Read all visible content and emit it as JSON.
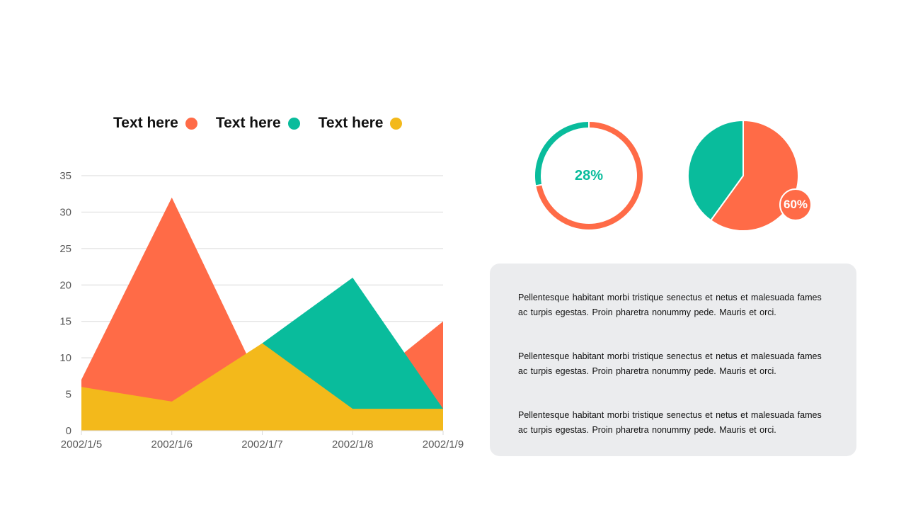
{
  "colors": {
    "orange": "#FF6B47",
    "teal": "#09BC9C",
    "yellow": "#F3B91B",
    "grid": "#D9D9D9",
    "panel": "#EBECEE"
  },
  "legend": [
    {
      "label": "Text here",
      "color": "#FF6B47"
    },
    {
      "label": "Text here",
      "color": "#09BC9C"
    },
    {
      "label": "Text here",
      "color": "#F3B91B"
    }
  ],
  "chart_data": [
    {
      "type": "area",
      "categories": [
        "2002/1/5",
        "2002/1/6",
        "2002/1/7",
        "2002/1/8",
        "2002/1/9"
      ],
      "series": [
        {
          "name": "Text here",
          "color": "#FF6B47",
          "values": [
            7,
            32,
            6,
            5,
            15
          ]
        },
        {
          "name": "Text here",
          "color": "#09BC9C",
          "values": [
            5,
            3,
            12,
            21,
            3
          ]
        },
        {
          "name": "Text here",
          "color": "#F3B91B",
          "values": [
            6,
            4,
            12,
            3,
            3
          ]
        }
      ],
      "ylim": [
        0,
        35
      ],
      "yticks": [
        0,
        5,
        10,
        15,
        20,
        25,
        30,
        35
      ],
      "grid": true,
      "legend_position": "top"
    },
    {
      "type": "pie",
      "variant": "donut",
      "slices": [
        {
          "value": 28,
          "color": "#09BC9C"
        },
        {
          "value": 72,
          "color": "#FF6B47"
        }
      ],
      "center_label": "28%"
    },
    {
      "type": "pie",
      "slices": [
        {
          "value": 60,
          "color": "#FF6B47"
        },
        {
          "value": 40,
          "color": "#09BC9C"
        }
      ],
      "badge_label": "60%"
    }
  ],
  "text_panel": {
    "paragraphs": [
      "Pellentesque habitant morbi tristique senectus et netus et malesuada fames ac turpis egestas. Proin pharetra nonummy  pede. Mauris et orci.",
      "Pellentesque habitant morbi tristique senectus et netus et malesuada fames ac turpis egestas. Proin pharetra nonummy  pede. Mauris et orci.",
      "Pellentesque habitant morbi tristique senectus et netus et malesuada fames ac turpis egestas. Proin pharetra nonummy  pede. Mauris et orci."
    ]
  }
}
